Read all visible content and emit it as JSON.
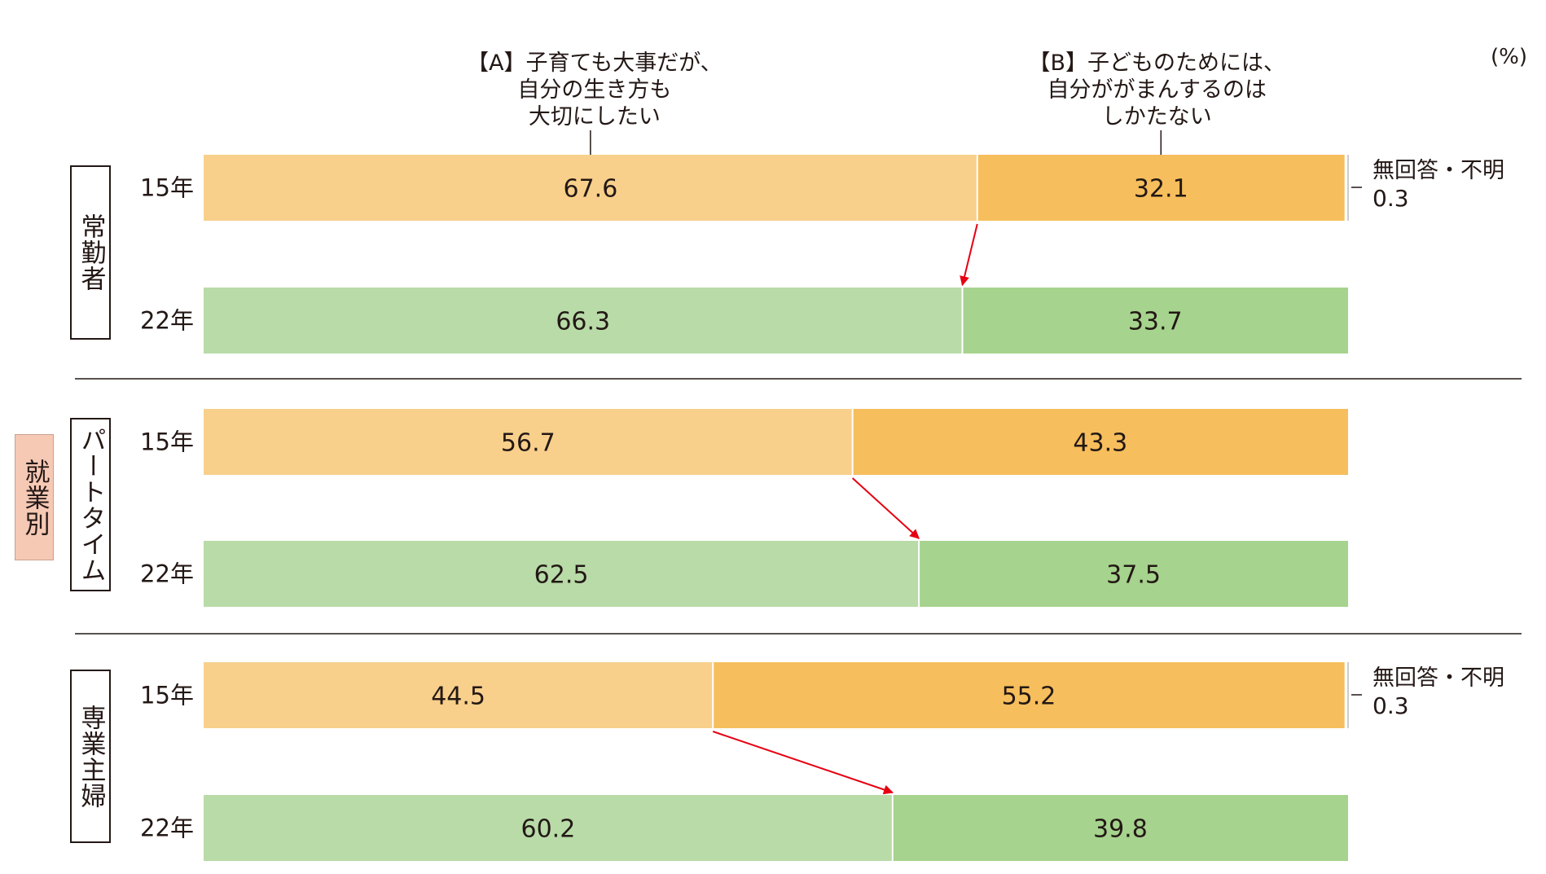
{
  "unit_label": "(%)",
  "category_label": "就業別",
  "legend": {
    "a_label": [
      "【A】子育ても大事だが、",
      "自分の生き方も",
      "大切にしたい"
    ],
    "b_label": [
      "【B】子どものためには、",
      "自分ががまんするのは",
      "しかたない"
    ]
  },
  "colors": {
    "a_15": "#f8d08b",
    "b_15": "#f6be5c",
    "a_22": "#b8dba8",
    "b_22": "#a6d38d",
    "arrow": "#e60012",
    "category_box": "#f6c9b5"
  },
  "chart_data": {
    "type": "bar",
    "orientation": "horizontal",
    "stacked": true,
    "xlim": [
      0,
      100
    ],
    "unit": "(%)",
    "groups": [
      {
        "label": "常勤者",
        "rows": [
          {
            "year": "15年",
            "values": {
              "A": 67.6,
              "B": 32.1,
              "no_answer": 0.3
            },
            "labels": {
              "A": "67.6",
              "B": "32.1"
            },
            "no_answer_label": "無回答・不明",
            "no_answer_value": "0.3"
          },
          {
            "year": "22年",
            "values": {
              "A": 66.3,
              "B": 33.7
            },
            "labels": {
              "A": "66.3",
              "B": "33.7"
            }
          }
        ]
      },
      {
        "label": "パートタイム",
        "rows": [
          {
            "year": "15年",
            "values": {
              "A": 56.7,
              "B": 43.3
            },
            "labels": {
              "A": "56.7",
              "B": "43.3"
            }
          },
          {
            "year": "22年",
            "values": {
              "A": 62.5,
              "B": 37.5
            },
            "labels": {
              "A": "62.5",
              "B": "37.5"
            }
          }
        ]
      },
      {
        "label": "専業主婦",
        "rows": [
          {
            "year": "15年",
            "values": {
              "A": 44.5,
              "B": 55.2,
              "no_answer": 0.3
            },
            "labels": {
              "A": "44.5",
              "B": "55.2"
            },
            "no_answer_label": "無回答・不明",
            "no_answer_value": "0.3"
          },
          {
            "year": "22年",
            "values": {
              "A": 60.2,
              "B": 39.8
            },
            "labels": {
              "A": "60.2",
              "B": "39.8"
            }
          }
        ]
      }
    ]
  }
}
